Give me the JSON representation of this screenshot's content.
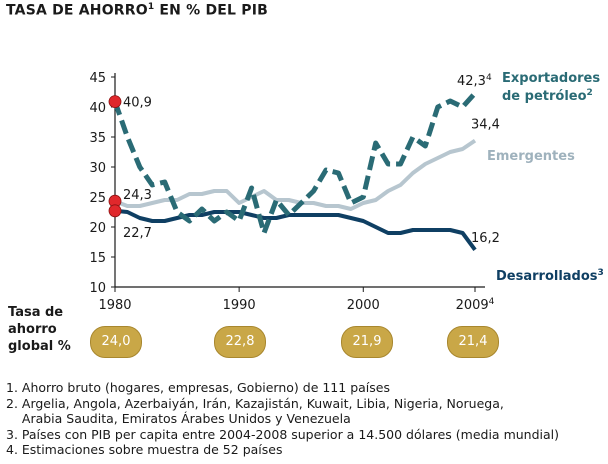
{
  "title": {
    "main": "TASA DE AHORRO",
    "sup": "1",
    "rest": " EN % DEL PIB"
  },
  "chart_data": {
    "type": "line",
    "x": [
      1980,
      1981,
      1982,
      1983,
      1984,
      1985,
      1986,
      1987,
      1988,
      1989,
      1990,
      1991,
      1992,
      1993,
      1994,
      1995,
      1996,
      1997,
      1998,
      1999,
      2000,
      2001,
      2002,
      2003,
      2004,
      2005,
      2006,
      2007,
      2008,
      2009
    ],
    "xticks": [
      "1980",
      "1990",
      "2000",
      "2009"
    ],
    "xtick_sup": "4",
    "yticks": [
      10,
      15,
      20,
      25,
      30,
      35,
      40,
      45
    ],
    "ylim": [
      10,
      45
    ],
    "series": [
      {
        "name": "Exportadores de petróleo",
        "name_line1": "Exportadores",
        "name_line2": "de petróleo",
        "sup": "2",
        "color": "#2a6b75",
        "style": "dashed",
        "values": [
          40.9,
          35.0,
          30.0,
          27.0,
          27.5,
          22.5,
          21.0,
          23.0,
          21.0,
          22.5,
          21.0,
          26.5,
          19.0,
          24.5,
          22.0,
          24.0,
          26.0,
          29.5,
          29.0,
          24.0,
          25.0,
          34.0,
          30.5,
          30.5,
          35.0,
          33.5,
          40.0,
          41.0,
          40.0,
          42.3
        ],
        "end_label": "42,3",
        "end_sup": "4",
        "start_label": "40,9"
      },
      {
        "name": "Emergentes",
        "color": "#b7c6cf",
        "style": "solid",
        "values": [
          24.3,
          23.5,
          23.5,
          24.0,
          24.5,
          24.5,
          25.5,
          25.5,
          26.0,
          26.0,
          24.0,
          25.0,
          26.0,
          24.5,
          24.5,
          24.0,
          24.0,
          23.5,
          23.5,
          23.0,
          24.0,
          24.5,
          26.0,
          27.0,
          29.0,
          30.5,
          31.5,
          32.5,
          33.0,
          34.4
        ],
        "end_label": "34,4",
        "start_label": "24,3"
      },
      {
        "name": "Desarrollados",
        "sup": "3",
        "color": "#0f3f63",
        "style": "solid",
        "values": [
          22.7,
          22.5,
          21.5,
          21.0,
          21.0,
          21.5,
          22.0,
          22.0,
          22.5,
          22.5,
          22.5,
          22.0,
          21.5,
          21.5,
          22.0,
          22.0,
          22.0,
          22.0,
          22.0,
          21.5,
          21.0,
          20.0,
          19.0,
          19.0,
          19.5,
          19.5,
          19.5,
          19.5,
          19.0,
          16.2
        ],
        "end_label": "16,2",
        "start_label": "22,7"
      }
    ],
    "marker_color": "#e0282c"
  },
  "global_rate": {
    "label_line1": "Tasa de",
    "label_line2": "ahorro",
    "label_line3": "global %",
    "values": [
      "24,0",
      "22,8",
      "21,9",
      "21,4"
    ]
  },
  "notes": [
    "1. Ahorro bruto (hogares, empresas, Gobierno) de 111 países",
    "2. Argelia, Angola, Azerbaiyán, Irán, Kazajistán, Kuwait, Libia, Nigeria, Noruega,",
    "    Arabia Saudita, Emiratos Árabes Unidos y Venezuela",
    "3. Países con PIB per capita entre 2004-2008 superior a 14.500 dólares (media mundial)",
    "4. Estimaciones sobre muestra de 52 países"
  ]
}
